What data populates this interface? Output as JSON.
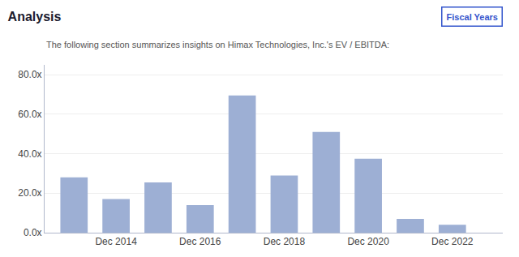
{
  "chart_data": {
    "type": "bar",
    "title": "Analysis",
    "subtitle": "The following section summarizes insights on Himax Technologies, Inc.'s EV / EBITDA:",
    "annotations": [
      {
        "text": "Fiscal Years"
      }
    ],
    "x": [
      2013,
      2014,
      2015,
      2016,
      2017,
      2018,
      2019,
      2020,
      2021,
      2022
    ],
    "values": [
      28.0,
      17.0,
      25.5,
      14.0,
      69.5,
      29.0,
      51.0,
      37.5,
      7.0,
      4.0
    ],
    "color": "#9dafd4",
    "xlim": [
      2012.3,
      2023.2
    ],
    "xticks": [
      {
        "value": 2014,
        "label": "Dec 2014"
      },
      {
        "value": 2016,
        "label": "Dec 2016"
      },
      {
        "value": 2018,
        "label": "Dec 2018"
      },
      {
        "value": 2020,
        "label": "Dec 2020"
      },
      {
        "value": 2022,
        "label": "Dec 2022"
      }
    ],
    "ylim": [
      0,
      85
    ],
    "yticks": [
      {
        "value": 0,
        "label": "0.0x"
      },
      {
        "value": 20,
        "label": "20.0x"
      },
      {
        "value": 40,
        "label": "40.0x"
      },
      {
        "value": 60,
        "label": "60.0x"
      },
      {
        "value": 80,
        "label": "80.0x"
      }
    ],
    "grid": true
  }
}
